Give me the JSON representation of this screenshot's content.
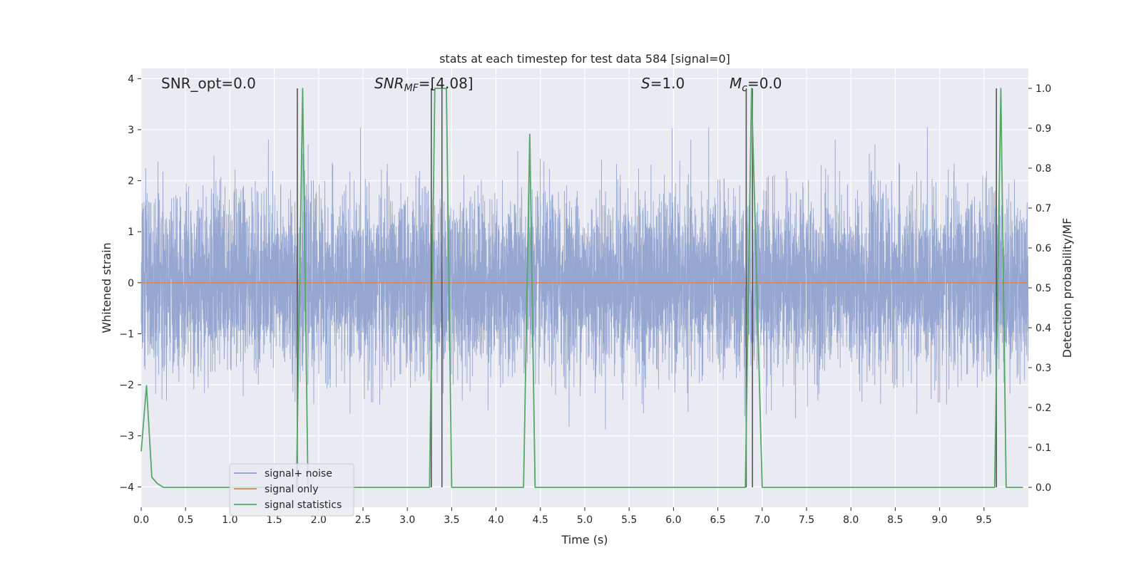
{
  "chart_data": {
    "type": "line",
    "title": "stats at each timestep for test data 584 [signal=0]",
    "xlabel": "Time (s)",
    "ylabel": "Whitened strain",
    "ylabel_right": "Detection probability/MF",
    "xlim": [
      0.0,
      10.0
    ],
    "ylim": [
      -4.4,
      4.2
    ],
    "ylim_right": [
      -0.05,
      1.05
    ],
    "grid": true,
    "legend_position": "lower-left",
    "x_ticks": [
      0.0,
      0.5,
      1.0,
      1.5,
      2.0,
      2.5,
      3.0,
      3.5,
      4.0,
      4.5,
      5.0,
      5.5,
      6.0,
      6.5,
      7.0,
      7.5,
      8.0,
      8.5,
      9.0,
      9.5
    ],
    "x_tick_labels": [
      "0.0",
      "0.5",
      "1.0",
      "1.5",
      "2.0",
      "2.5",
      "3.0",
      "3.5",
      "4.0",
      "4.5",
      "5.0",
      "5.5",
      "6.0",
      "6.5",
      "7.0",
      "7.5",
      "8.0",
      "8.5",
      "9.0",
      "9.5"
    ],
    "y_ticks": [
      -4,
      -3,
      -2,
      -1,
      0,
      1,
      2,
      3,
      4
    ],
    "y_tick_labels": [
      "−4",
      "−3",
      "−2",
      "−1",
      "0",
      "1",
      "2",
      "3",
      "4"
    ],
    "y_ticks_right": [
      0.0,
      0.1,
      0.2,
      0.3,
      0.4,
      0.5,
      0.6,
      0.7,
      0.8,
      0.9,
      1.0
    ],
    "y_tick_labels_right": [
      "0.0",
      "0.1",
      "0.2",
      "0.3",
      "0.4",
      "0.5",
      "0.6",
      "0.7",
      "0.8",
      "0.9",
      "1.0"
    ],
    "annotations": [
      {
        "id": "snr-opt",
        "prefix": "SNR_opt=",
        "value": "0.0",
        "italic": false
      },
      {
        "id": "snr-mf",
        "symbol": "SNR",
        "sub": "MF",
        "suffix": "=[4.08]",
        "italic": true
      },
      {
        "id": "s-stat",
        "symbol": "S",
        "suffix": "=1.0",
        "italic": true
      },
      {
        "id": "mc-stat",
        "symbol": "M",
        "sub": "c",
        "suffix": "=0.0",
        "italic": true
      }
    ],
    "series": [
      {
        "name": "signal+ noise",
        "kind": "noise",
        "color": "#8c9fcd",
        "axis": "left",
        "note": "dense Gaussian noise, mostly within about ±1.5 with peaks near ±3",
        "sample_rate": 819,
        "duration": 10,
        "std": 0.85
      },
      {
        "name": "signal only",
        "kind": "line",
        "color": "#dd8452",
        "axis": "left",
        "x": [
          0.0,
          10.0
        ],
        "y": [
          0.0,
          0.0
        ]
      },
      {
        "name": "signal statistics",
        "kind": "line",
        "color": "#55a868",
        "axis": "right",
        "x": [
          0.0,
          0.06,
          0.12,
          0.18,
          0.25,
          0.3,
          1.75,
          1.82,
          1.88,
          3.25,
          3.31,
          3.38,
          3.44,
          3.5,
          4.31,
          4.38,
          4.44,
          6.81,
          6.88,
          6.94,
          7.0,
          9.62,
          9.69,
          9.75,
          9.94
        ],
        "y": [
          0.09,
          0.255,
          0.025,
          0.01,
          0.0,
          0.0,
          0.0,
          1.0,
          0.0,
          0.0,
          1.0,
          1.0,
          1.0,
          0.0,
          0.0,
          0.885,
          0.0,
          0.0,
          1.0,
          0.5,
          0.0,
          0.0,
          1.0,
          0.0,
          0.0
        ]
      }
    ],
    "vertical_lines": {
      "color": "#555555",
      "axis": "right",
      "items": [
        {
          "x": 1.76,
          "y": [
            0.0,
            1.0
          ]
        },
        {
          "x": 3.27,
          "y": [
            0.0,
            1.0
          ]
        },
        {
          "x": 3.39,
          "y": [
            0.0,
            1.0
          ]
        },
        {
          "x": 6.82,
          "y": [
            0.0,
            1.0
          ]
        },
        {
          "x": 6.89,
          "y": [
            0.0,
            1.0
          ]
        },
        {
          "x": 9.64,
          "y": [
            0.0,
            1.0
          ]
        }
      ]
    },
    "colors": {
      "plot_background": "#eaeaf2",
      "grid": "#ffffff",
      "text": "#262626"
    }
  }
}
